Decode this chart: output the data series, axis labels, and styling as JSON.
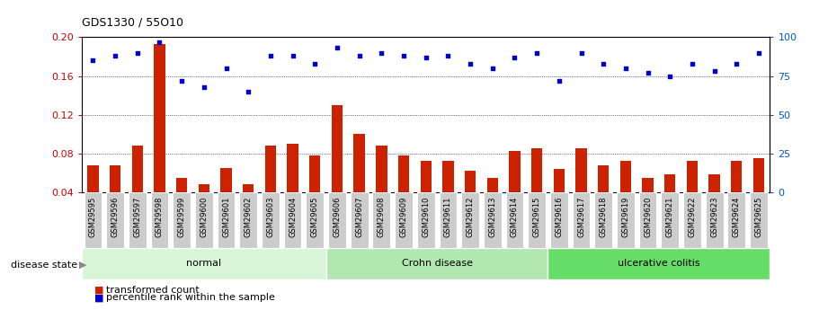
{
  "title": "GDS1330 / 55O10",
  "categories": [
    "GSM29595",
    "GSM29596",
    "GSM29597",
    "GSM29598",
    "GSM29599",
    "GSM29600",
    "GSM29601",
    "GSM29602",
    "GSM29603",
    "GSM29604",
    "GSM29605",
    "GSM29606",
    "GSM29607",
    "GSM29608",
    "GSM29609",
    "GSM29610",
    "GSM29611",
    "GSM29612",
    "GSM29613",
    "GSM29614",
    "GSM29615",
    "GSM29616",
    "GSM29617",
    "GSM29618",
    "GSM29619",
    "GSM29620",
    "GSM29621",
    "GSM29622",
    "GSM29623",
    "GSM29624",
    "GSM29625"
  ],
  "bar_values": [
    0.068,
    0.068,
    0.088,
    0.193,
    0.055,
    0.048,
    0.065,
    0.048,
    0.088,
    0.09,
    0.078,
    0.13,
    0.1,
    0.088,
    0.078,
    0.072,
    0.072,
    0.062,
    0.055,
    0.083,
    0.085,
    0.064,
    0.085,
    0.068,
    0.072,
    0.055,
    0.058,
    0.072,
    0.058,
    0.072,
    0.075
  ],
  "dot_values": [
    85,
    88,
    90,
    97,
    72,
    68,
    80,
    65,
    88,
    88,
    83,
    93,
    88,
    90,
    88,
    87,
    88,
    83,
    80,
    87,
    90,
    72,
    90,
    83,
    80,
    77,
    75,
    83,
    78,
    83,
    90
  ],
  "bar_color": "#cc2200",
  "dot_color": "#0000cc",
  "ylim_left": [
    0.04,
    0.2
  ],
  "ylim_right": [
    0,
    100
  ],
  "yticks_left": [
    0.04,
    0.08,
    0.12,
    0.16,
    0.2
  ],
  "yticks_right": [
    0,
    25,
    50,
    75,
    100
  ],
  "group_boundaries": [
    {
      "label": "normal",
      "start": 0,
      "end": 10,
      "color": "#d8f5d8"
    },
    {
      "label": "Crohn disease",
      "start": 11,
      "end": 20,
      "color": "#b0e8b0"
    },
    {
      "label": "ulcerative colitis",
      "start": 21,
      "end": 30,
      "color": "#66dd66"
    }
  ],
  "disease_state_label": "disease state",
  "legend_bar_label": "transformed count",
  "legend_dot_label": "percentile rank within the sample",
  "bg_color": "#ffffff",
  "tick_bg_color": "#cccccc",
  "bar_border_color": "#888888"
}
